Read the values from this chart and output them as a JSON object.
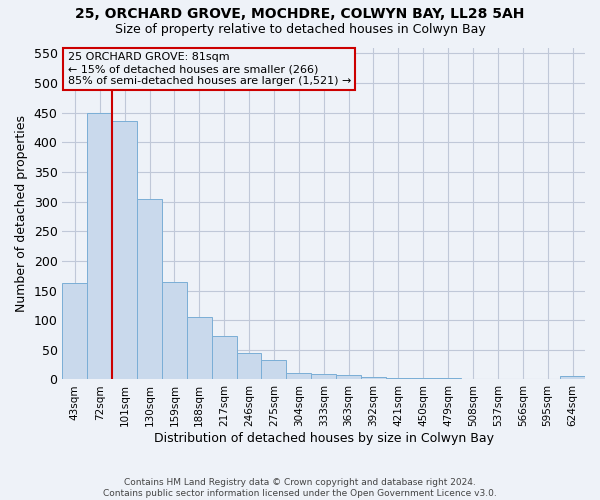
{
  "title1": "25, ORCHARD GROVE, MOCHDRE, COLWYN BAY, LL28 5AH",
  "title2": "Size of property relative to detached houses in Colwyn Bay",
  "xlabel": "Distribution of detached houses by size in Colwyn Bay",
  "ylabel": "Number of detached properties",
  "categories": [
    "43sqm",
    "72sqm",
    "101sqm",
    "130sqm",
    "159sqm",
    "188sqm",
    "217sqm",
    "246sqm",
    "275sqm",
    "304sqm",
    "333sqm",
    "363sqm",
    "392sqm",
    "421sqm",
    "450sqm",
    "479sqm",
    "508sqm",
    "537sqm",
    "566sqm",
    "595sqm",
    "624sqm"
  ],
  "bar_heights": [
    163,
    450,
    436,
    305,
    165,
    106,
    73,
    45,
    32,
    11,
    10,
    8,
    4,
    2,
    2,
    2,
    1,
    1,
    1,
    0,
    5
  ],
  "bar_color": "#c9d9ec",
  "bar_edgecolor": "#7aaed6",
  "grid_color": "#c0c8d8",
  "vline_x": 1.5,
  "vline_color": "#cc0000",
  "annotation_text": "25 ORCHARD GROVE: 81sqm\n← 15% of detached houses are smaller (266)\n85% of semi-detached houses are larger (1,521) →",
  "annotation_box_edgecolor": "#cc0000",
  "ylim": [
    0,
    560
  ],
  "yticks": [
    0,
    50,
    100,
    150,
    200,
    250,
    300,
    350,
    400,
    450,
    500,
    550
  ],
  "footer": "Contains HM Land Registry data © Crown copyright and database right 2024.\nContains public sector information licensed under the Open Government Licence v3.0.",
  "bg_color": "#eef2f8"
}
